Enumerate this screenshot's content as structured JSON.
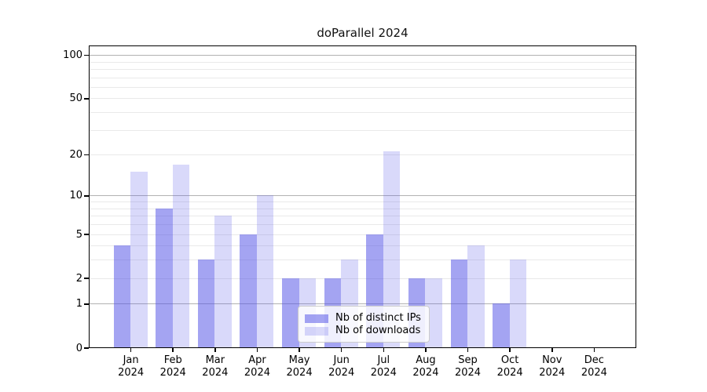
{
  "chart": {
    "title": "doParallel 2024"
  },
  "chart_data": {
    "type": "bar",
    "title": "doParallel 2024",
    "categories": [
      "Jan 2024",
      "Feb 2024",
      "Mar 2024",
      "Apr 2024",
      "May 2024",
      "Jun 2024",
      "Jul 2024",
      "Aug 2024",
      "Sep 2024",
      "Oct 2024",
      "Nov 2024",
      "Dec 2024"
    ],
    "category_month_line": [
      "Jan",
      "Feb",
      "Mar",
      "Apr",
      "May",
      "Jun",
      "Jul",
      "Aug",
      "Sep",
      "Oct",
      "Nov",
      "Dec"
    ],
    "category_year_line": "2024",
    "series": [
      {
        "name": "Nb of distinct IPs",
        "color": "rgba(80,80,230,0.52)",
        "values": [
          4,
          8,
          3,
          5,
          2,
          2,
          5,
          2,
          3,
          1,
          0,
          0
        ]
      },
      {
        "name": "Nb of downloads",
        "color": "rgba(80,80,230,0.22)",
        "values": [
          15,
          17,
          7,
          10,
          2,
          3,
          21,
          2,
          4,
          3,
          0,
          0
        ]
      }
    ],
    "xlabel": "",
    "ylabel": "",
    "yscale": "log1p",
    "ylim": [
      0,
      117
    ],
    "yticks": [
      0,
      1,
      2,
      5,
      10,
      20,
      50,
      100
    ],
    "major_gridlines": [
      1,
      10,
      100
    ],
    "minor_gridlines": [
      2,
      3,
      4,
      5,
      6,
      7,
      8,
      9,
      20,
      30,
      40,
      50,
      60,
      70,
      80,
      90
    ],
    "grid": true,
    "legend_position": "inside-lower-center"
  },
  "colors": {
    "bar_distinct_ips": "rgba(80,80,230,0.52)",
    "bar_downloads": "rgba(80,80,230,0.22)",
    "bar_distinct_ips_hex": "#a4a4f2",
    "bar_downloads_hex": "#d9d9f9",
    "major_grid": "#b2b2b2",
    "minor_grid": "#e9e9e9",
    "spine": "#000000",
    "legend_border": "#cccccc",
    "text": "#000000"
  }
}
